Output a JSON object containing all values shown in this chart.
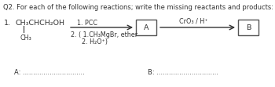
{
  "title": "Q2. For each of the following reactions; write the missing reactants and products:",
  "item_number": "1.",
  "reactant_main": "CH₃CHCH₂OH",
  "reactant_sub": "CH₃",
  "step1": "1. PCC",
  "step2": "2. ( 1.CH₃MgBr, ether",
  "step3": "2. H₂O⁺)",
  "box_a_label": "A",
  "reagent2": "CrO₃ / H⁺",
  "box_b_label": "B",
  "answer_a": "A: ..............................",
  "answer_b": "B: ..............................",
  "bg_color": "#ffffff",
  "box_color": "#ffffff",
  "box_edge_color": "#555555",
  "text_color": "#333333",
  "arrow_color": "#333333"
}
